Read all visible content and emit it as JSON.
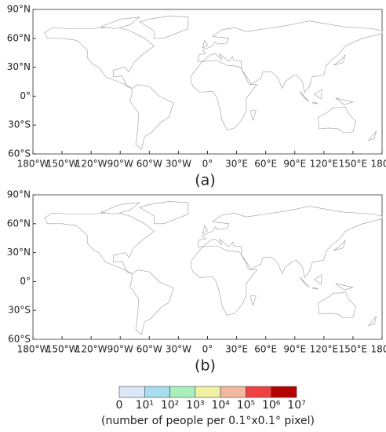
{
  "maps": [
    {
      "label": "(a)"
    },
    {
      "label": "(b)"
    }
  ],
  "lat_labels": [
    "90°N",
    "60°N",
    "30°N",
    "0°",
    "30°S",
    "60°S"
  ],
  "lon_labels": [
    "180°W",
    "150°W",
    "120°W",
    "90°W",
    "60°W",
    "30°W",
    "0°",
    "30°E",
    "60°E",
    "90°E",
    "120°E",
    "150°E",
    "180°"
  ],
  "colorbar": {
    "labels": [
      "0",
      "10¹",
      "10²",
      "10³",
      "10⁴",
      "10⁵",
      "10⁶",
      "10⁷"
    ],
    "colors": [
      "#dbe8f7",
      "#a8dcee",
      "#a9efbd",
      "#eff0a3",
      "#f3b8a0",
      "#ef4343",
      "#b40000"
    ],
    "caption": "(number of people per 0.1°x0.1° pixel)"
  }
}
